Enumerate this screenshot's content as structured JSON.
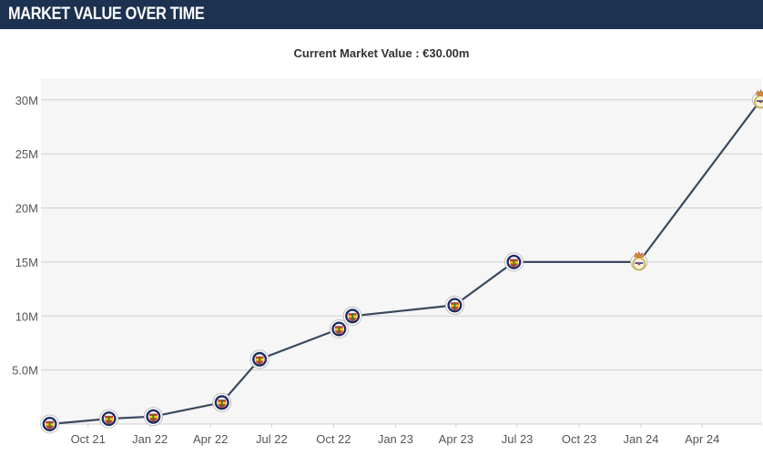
{
  "header": {
    "title": "MARKET VALUE OVER TIME"
  },
  "subtitle": {
    "label": "Current Market Value : ",
    "value": "€30.00m"
  },
  "colors": {
    "header_bg": "#1d3150",
    "plot_bg": "#f6f6f6",
    "line": "#3a4a5e",
    "fenerbahce_navy": "#1d2b63",
    "fenerbahce_yellow": "#f5d000",
    "real_madrid_gold": "#c9a93a"
  },
  "chart_data": {
    "type": "line",
    "x_axis_type": "date",
    "xlim": [
      "2021-07-23",
      "2024-06-29"
    ],
    "ylim": [
      0,
      32
    ],
    "y_unit": "M",
    "grid": true,
    "yticks": [
      {
        "value": 5,
        "label": "5.0M"
      },
      {
        "value": 10,
        "label": "10M"
      },
      {
        "value": 15,
        "label": "15M"
      },
      {
        "value": 20,
        "label": "20M"
      },
      {
        "value": 25,
        "label": "25M"
      },
      {
        "value": 30,
        "label": "30M"
      }
    ],
    "xticks": [
      {
        "date": "2021-10-01",
        "label": "Oct 21"
      },
      {
        "date": "2022-01-01",
        "label": "Jan 22"
      },
      {
        "date": "2022-04-01",
        "label": "Apr 22"
      },
      {
        "date": "2022-07-01",
        "label": "Jul 22"
      },
      {
        "date": "2022-10-01",
        "label": "Oct 22"
      },
      {
        "date": "2023-01-01",
        "label": "Jan 23"
      },
      {
        "date": "2023-04-01",
        "label": "Apr 23"
      },
      {
        "date": "2023-07-01",
        "label": "Jul 23"
      },
      {
        "date": "2023-10-01",
        "label": "Oct 23"
      },
      {
        "date": "2024-01-01",
        "label": "Jan 24"
      },
      {
        "date": "2024-04-01",
        "label": "Apr 24"
      }
    ],
    "series": [
      {
        "points": [
          {
            "date": "2021-08-05",
            "value": 0,
            "club": "fenerbahce"
          },
          {
            "date": "2021-11-01",
            "value": 0.5,
            "club": "fenerbahce"
          },
          {
            "date": "2022-01-06",
            "value": 0.7,
            "club": "fenerbahce"
          },
          {
            "date": "2022-04-18",
            "value": 2,
            "club": "fenerbahce"
          },
          {
            "date": "2022-06-13",
            "value": 6,
            "club": "fenerbahce"
          },
          {
            "date": "2022-10-09",
            "value": 8.8,
            "club": "fenerbahce"
          },
          {
            "date": "2022-10-29",
            "value": 10,
            "club": "fenerbahce"
          },
          {
            "date": "2023-03-30",
            "value": 11,
            "club": "fenerbahce"
          },
          {
            "date": "2023-06-26",
            "value": 15,
            "club": "fenerbahce"
          },
          {
            "date": "2023-12-29",
            "value": 15,
            "club": "real-madrid"
          },
          {
            "date": "2024-06-27",
            "value": 30,
            "club": "real-madrid"
          }
        ]
      }
    ]
  }
}
